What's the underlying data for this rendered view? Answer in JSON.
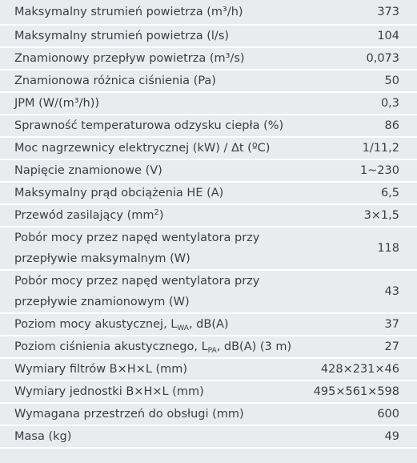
{
  "table": {
    "rows": [
      {
        "label": "Maksymalny strumień powietrza (m³/h)",
        "value": "373"
      },
      {
        "label": "Maksymalny strumień powietrza (l/s)",
        "value": "104"
      },
      {
        "label": "Znamionowy przepływ powietrza (m³/s)",
        "value": "0,073"
      },
      {
        "label": "Znamionowa różnica ciśnienia (Pa)",
        "value": "50"
      },
      {
        "label": "JPM (W/(m³/h))",
        "value": "0,3"
      },
      {
        "label": "Sprawność temperaturowa odzysku ciepła (%)",
        "value": "86"
      },
      {
        "label": "Moc nagrzewnicy elektrycznej (kW) / Δt (ºC)",
        "value": "1/11,2"
      },
      {
        "label": "Napięcie znamionowe (V)",
        "value": "1~230"
      },
      {
        "label": "Maksymalny prąd obciążenia HE (A)",
        "value": "6,5"
      },
      {
        "label": "Przewód zasilający (mm",
        "sup": "2",
        "label_end": ")",
        "value": "3×1,5"
      },
      {
        "lines": [
          "Pobór mocy przez napęd wentylatora przy",
          "przepływie maksymalnym (W)"
        ],
        "value": "118"
      },
      {
        "lines": [
          "Pobór mocy przez napęd wentylatora przy",
          "przepływie znamionowym (W)"
        ],
        "value": "43"
      },
      {
        "label": "Poziom mocy akustycznej, L",
        "sub": "WA",
        "label_end": ", dB(A)",
        "value": "37"
      },
      {
        "label": "Poziom ciśnienia akustycznego, L",
        "sub": "PA",
        "label_end": ", dB(A) (3 m)",
        "value": "27"
      },
      {
        "label": "Wymiary filtrów B×H×L (mm)",
        "value": "428×231×46"
      },
      {
        "label": "Wymiary jednostki B×H×L (mm)",
        "value": "495×561×598"
      },
      {
        "label": "Wymagana przestrzeń do obsługi (mm)",
        "value": "600"
      },
      {
        "label": "Masa (kg)",
        "value": "49"
      }
    ]
  }
}
